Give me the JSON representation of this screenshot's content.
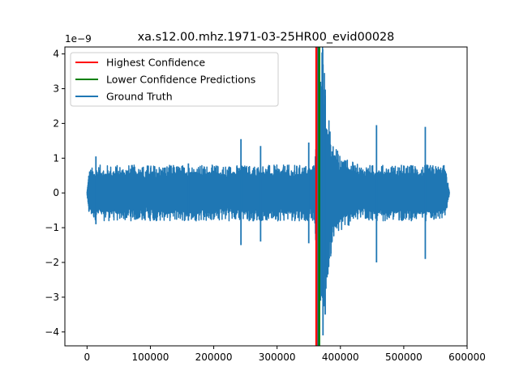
{
  "chart_data": {
    "type": "line",
    "title": "xa.s12.00.mhz.1971-03-25HR00_evid00028",
    "xlabel": "",
    "ylabel": "",
    "y_offset_label": "1e−9",
    "xlim": [
      -35000,
      600000
    ],
    "ylim": [
      -4.4e-09,
      4.2e-09
    ],
    "x_ticks": [
      0,
      100000,
      200000,
      300000,
      400000,
      500000,
      600000
    ],
    "x_tick_labels": [
      "0",
      "100000",
      "200000",
      "300000",
      "400000",
      "500000",
      "600000"
    ],
    "y_ticks": [
      -4e-09,
      -3e-09,
      -2e-09,
      -1e-09,
      0,
      1e-09,
      2e-09,
      3e-09,
      4e-09
    ],
    "y_tick_labels": [
      "−4",
      "−3",
      "−2",
      "−1",
      "0",
      "1",
      "2",
      "3",
      "4"
    ],
    "grid": false,
    "legend_position": "top-left",
    "legend": [
      {
        "label": "Highest Confidence",
        "color": "#ff0000"
      },
      {
        "label": "Lower Confidence Predictions",
        "color": "#008000"
      },
      {
        "label": "Ground Truth",
        "color": "#1f77b4"
      }
    ],
    "vertical_lines": [
      {
        "series": "Ground Truth",
        "x": 364500,
        "color": "#1f77b4"
      },
      {
        "series": "Lower Confidence Predictions",
        "x": 366500,
        "color": "#008000"
      },
      {
        "series": "Highest Confidence",
        "x": 362000,
        "color": "#ff0000"
      }
    ],
    "signal": {
      "color": "#1f77b4",
      "x_start": 0,
      "x_end": 572000,
      "noise_amplitude": 6.5e-10,
      "envelope": [
        [
          0,
          5e-11
        ],
        [
          3000,
          6e-10
        ],
        [
          15000,
          7e-10
        ],
        [
          358000,
          7e-10
        ],
        [
          362000,
          1.4e-09
        ],
        [
          366000,
          3.4e-09
        ],
        [
          372000,
          3.8e-09
        ],
        [
          378000,
          2.3e-09
        ],
        [
          386000,
          1.5e-09
        ],
        [
          396000,
          1.05e-09
        ],
        [
          410000,
          8.5e-10
        ],
        [
          430000,
          7e-10
        ],
        [
          565000,
          7e-10
        ],
        [
          572000,
          5e-11
        ]
      ],
      "spikes": [
        [
          14000,
          1.05e-09,
          -9e-10
        ],
        [
          160000,
          8.5e-10,
          -8e-10
        ],
        [
          243000,
          1.55e-09,
          -1.5e-09
        ],
        [
          274000,
          1.35e-09,
          -1.4e-09
        ],
        [
          350000,
          1.45e-09,
          -1.45e-09
        ],
        [
          366000,
          3.5e-09,
          -2.8e-09
        ],
        [
          368500,
          3.2e-09,
          -3.1e-09
        ],
        [
          372500,
          3.7e-09,
          -4.1e-09
        ],
        [
          376000,
          2.8e-09,
          -3.5e-09
        ],
        [
          457000,
          1.95e-09,
          -2e-09
        ],
        [
          534000,
          1.9e-09,
          -1.9e-09
        ]
      ]
    }
  }
}
